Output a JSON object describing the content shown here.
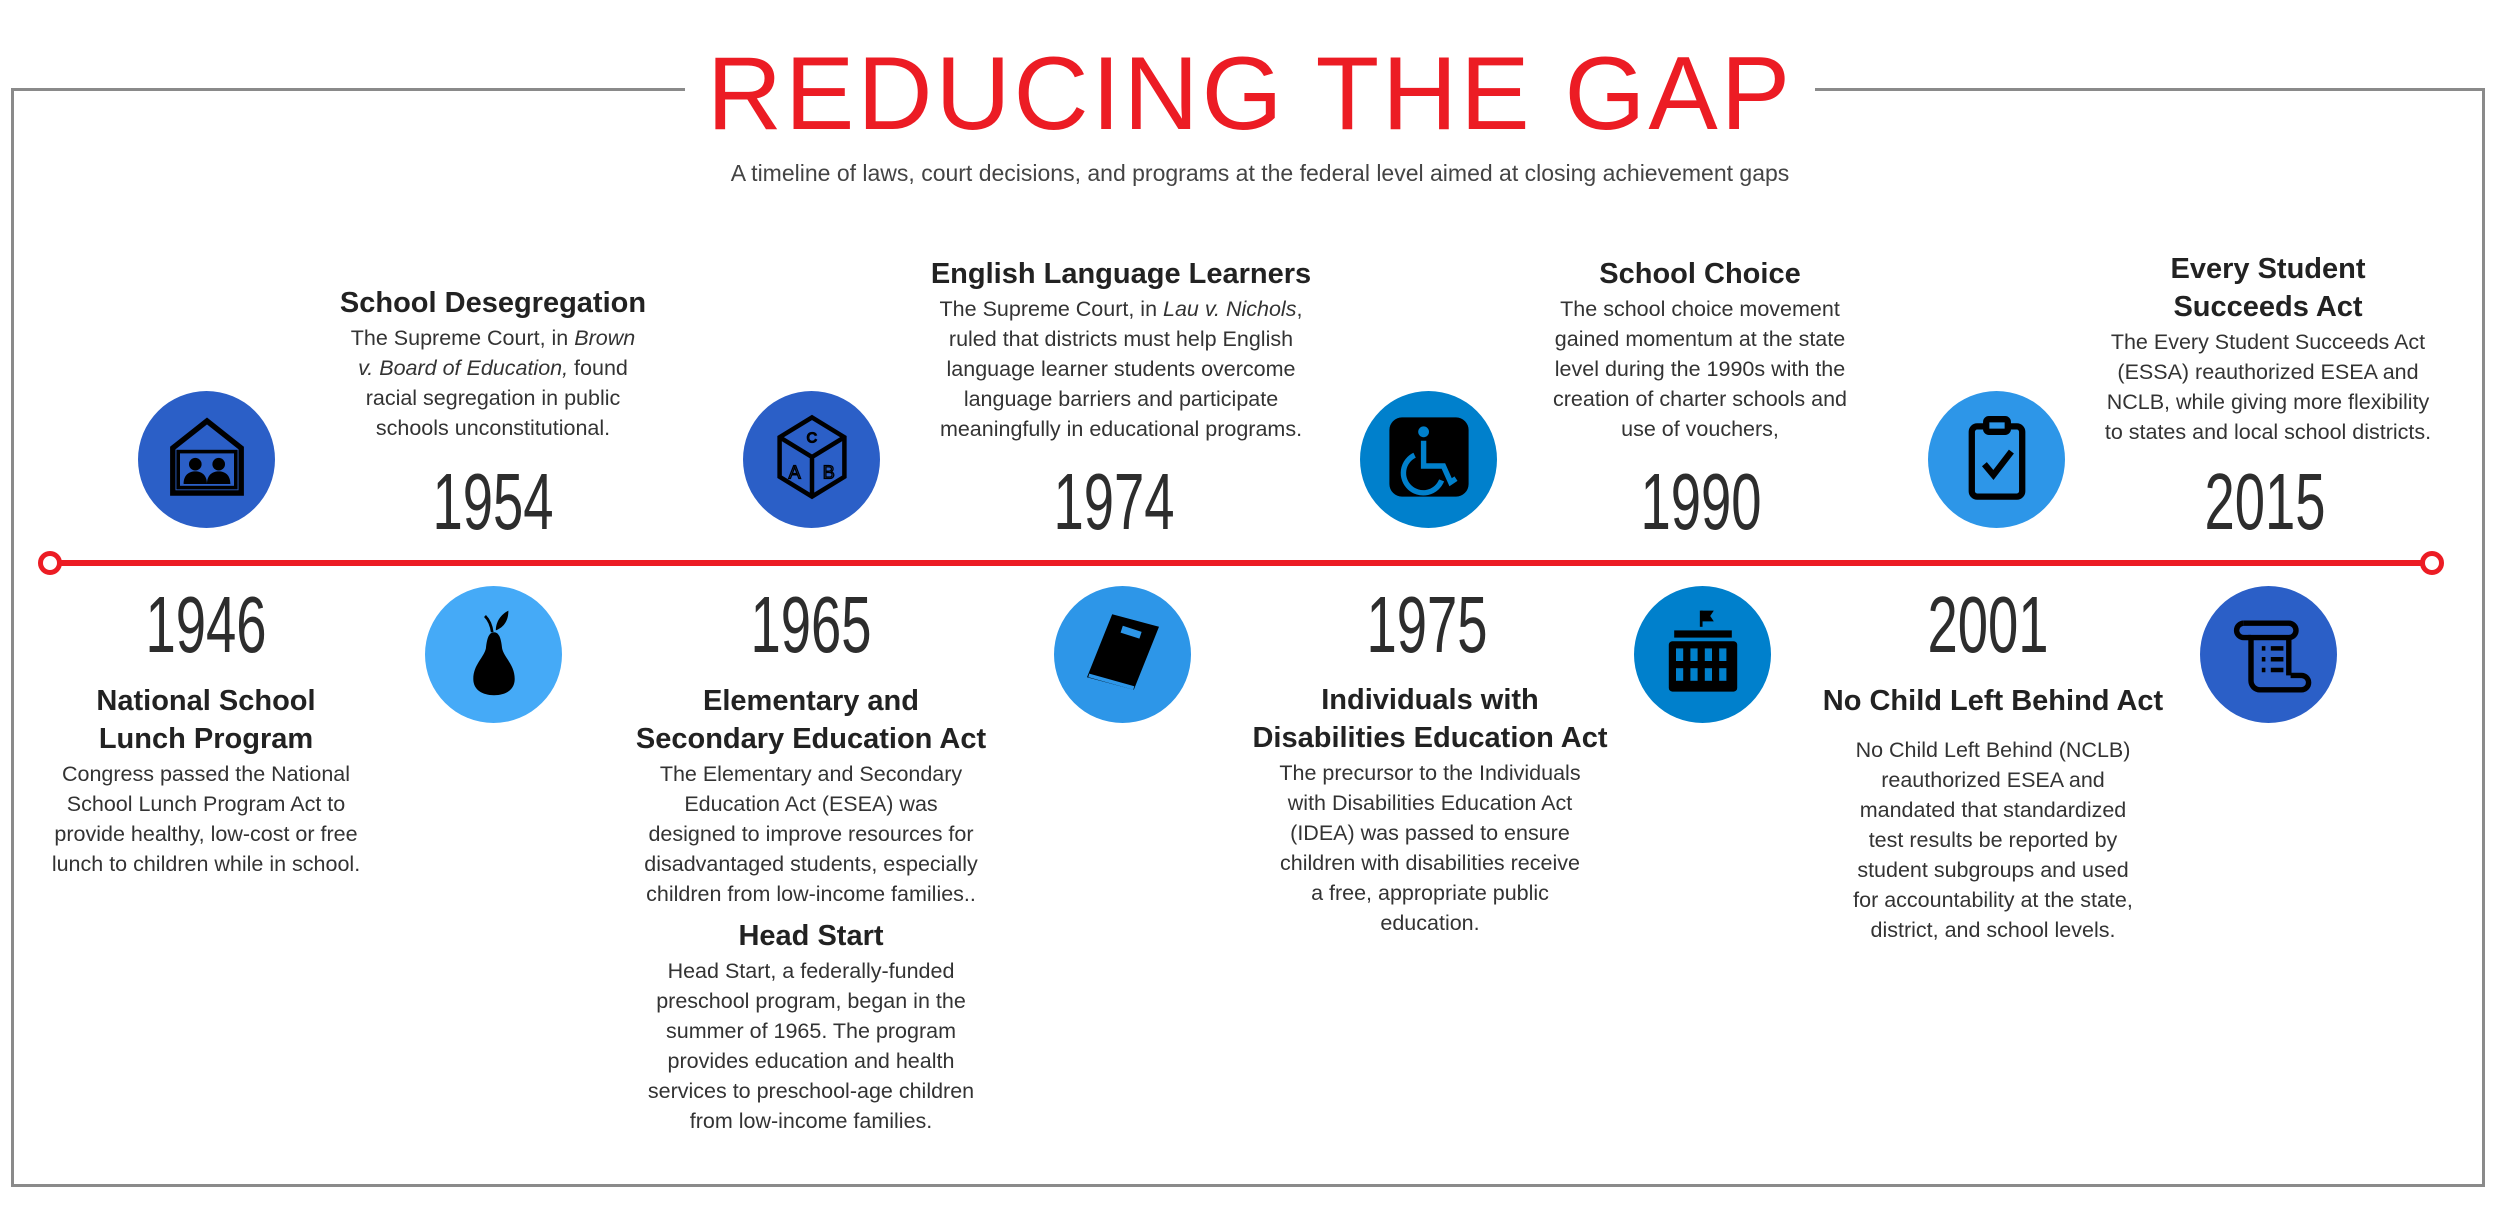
{
  "title": "REDUCING THE GAP",
  "subtitle": "A timeline of laws, court decisions, and programs at the federal level aimed at closing achievement gaps",
  "colors": {
    "accent": "#ec1c24",
    "light_blue": "#45aaf7",
    "royal_blue": "#2b5fc7",
    "mid_blue": "#0080cc",
    "sky_blue": "#2d96e8"
  },
  "events": [
    {
      "year": "1946",
      "icon": "pear-icon",
      "color": "#45aaf7",
      "title_lines": [
        "National School",
        "Lunch Program"
      ],
      "body_lines": [
        [
          {
            "t": "Congress passed the National"
          }
        ],
        [
          {
            "t": "School Lunch Program Act to"
          }
        ],
        [
          {
            "t": "provide healthy, low-cost or free"
          }
        ],
        [
          {
            "t": "lunch to children while in school."
          }
        ]
      ]
    },
    {
      "year": "1954",
      "icon": "classroom-house-icon",
      "color": "#2b5fc7",
      "title_lines": [
        "School Desegregation"
      ],
      "body_lines": [
        [
          {
            "t": "The Supreme Court, in "
          },
          {
            "t": "Brown",
            "i": true
          }
        ],
        [
          {
            "t": "v. Board of Education,",
            "i": true
          },
          {
            "t": " found"
          }
        ],
        [
          {
            "t": "racial segregation in public"
          }
        ],
        [
          {
            "t": "schools unconstitutional."
          }
        ]
      ]
    },
    {
      "year": "1965",
      "icon": "abc-block-icon",
      "color": "#2b5fc7",
      "title_lines": [
        "Elementary and",
        "Secondary Education Act"
      ],
      "body_lines": [
        [
          {
            "t": "The Elementary and Secondary"
          }
        ],
        [
          {
            "t": "Education Act (ESEA) was"
          }
        ],
        [
          {
            "t": "designed to improve resources for"
          }
        ],
        [
          {
            "t": "disadvantaged students, especially"
          }
        ],
        [
          {
            "t": "children from low-income families.."
          }
        ]
      ],
      "extra": {
        "title_lines": [
          "Head Start"
        ],
        "body_lines": [
          [
            {
              "t": "Head Start, a federally-funded"
            }
          ],
          [
            {
              "t": "preschool program, began in the"
            }
          ],
          [
            {
              "t": "summer of 1965. The program"
            }
          ],
          [
            {
              "t": "provides education and health"
            }
          ],
          [
            {
              "t": "services to preschool-age children"
            }
          ],
          [
            {
              "t": "from low-income families."
            }
          ]
        ]
      }
    },
    {
      "year": "1974",
      "icon": "book-icon",
      "color": "#2d96e8",
      "title_lines": [
        "English Language Learners"
      ],
      "body_lines": [
        [
          {
            "t": "The Supreme Court, in "
          },
          {
            "t": "Lau v. Nichols",
            "i": true
          },
          {
            "t": ","
          }
        ],
        [
          {
            "t": "ruled that districts must help English"
          }
        ],
        [
          {
            "t": "language learner students overcome"
          }
        ],
        [
          {
            "t": "language barriers and participate"
          }
        ],
        [
          {
            "t": "meaningfully in educational programs."
          }
        ]
      ]
    },
    {
      "year": "1975",
      "icon": "wheelchair-icon",
      "color": "#0080cc",
      "title_lines": [
        "Individuals with",
        "Disabilities Education Act"
      ],
      "body_lines": [
        [
          {
            "t": "The precursor to the Individuals"
          }
        ],
        [
          {
            "t": "with Disabilities Education Act"
          }
        ],
        [
          {
            "t": "(IDEA) was passed to ensure"
          }
        ],
        [
          {
            "t": "children with disabilities receive"
          }
        ],
        [
          {
            "t": "a free, appropriate public"
          }
        ],
        [
          {
            "t": "education."
          }
        ]
      ]
    },
    {
      "year": "1990",
      "icon": "school-building-icon",
      "color": "#0080cc",
      "title_lines": [
        "School Choice"
      ],
      "body_lines": [
        [
          {
            "t": "The school choice movement"
          }
        ],
        [
          {
            "t": "gained momentum at the state"
          }
        ],
        [
          {
            "t": "level during the 1990s with the"
          }
        ],
        [
          {
            "t": "creation of charter schools and"
          }
        ],
        [
          {
            "t": "use of vouchers,"
          }
        ]
      ]
    },
    {
      "year": "2001",
      "icon": "clipboard-check-icon",
      "color": "#2d96e8",
      "title_lines": [
        "No Child Left Behind Act"
      ],
      "body_lines": [
        [
          {
            "t": "No Child Left Behind (NCLB)"
          }
        ],
        [
          {
            "t": "reauthorized ESEA and"
          }
        ],
        [
          {
            "t": "mandated that standardized"
          }
        ],
        [
          {
            "t": "test results be reported by"
          }
        ],
        [
          {
            "t": "student subgroups and used"
          }
        ],
        [
          {
            "t": "for accountability at the state,"
          }
        ],
        [
          {
            "t": "district, and school levels."
          }
        ]
      ]
    },
    {
      "year": "2015",
      "icon": "scroll-icon",
      "color": "#2b5fc7",
      "title_lines": [
        "Every Student",
        "Succeeds Act"
      ],
      "body_lines": [
        [
          {
            "t": "The Every Student Succeeds Act"
          }
        ],
        [
          {
            "t": "(ESSA) reauthorized ESEA and"
          }
        ],
        [
          {
            "t": "NCLB, while giving more flexibility"
          }
        ],
        [
          {
            "t": "to states and local school districts."
          }
        ]
      ]
    }
  ]
}
